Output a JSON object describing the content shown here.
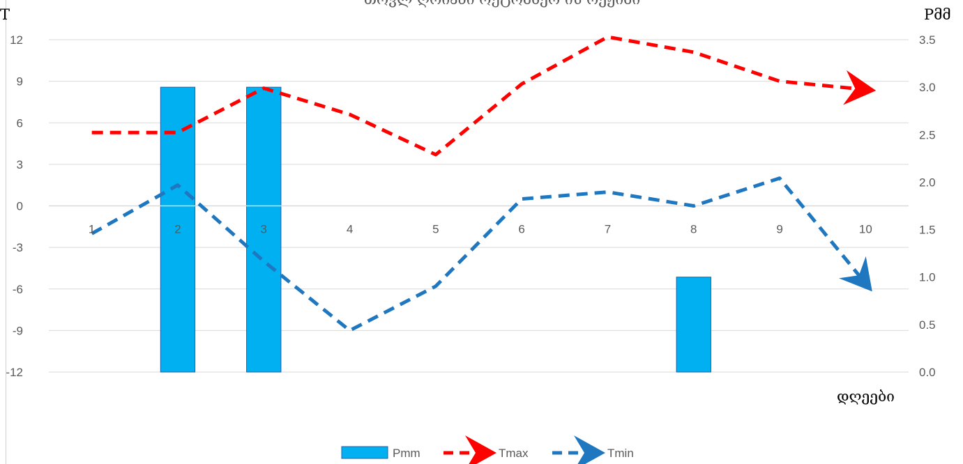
{
  "chart_data": {
    "type": "bar",
    "title": "თოვლ ღრიანი ოქტომბერ ის რეჟიმი",
    "xlabel": "დღეები",
    "ylabel_left": "T",
    "ylabel_right": "Pმმ",
    "categories": [
      "1",
      "2",
      "3",
      "4",
      "5",
      "6",
      "7",
      "8",
      "9",
      "10"
    ],
    "ylim_left": [
      -12,
      12
    ],
    "yticks_left": [
      "12",
      "9",
      "6",
      "3",
      "0",
      "-3",
      "-6",
      "-9",
      "-12"
    ],
    "ylim_right": [
      0,
      3.5
    ],
    "yticks_right": [
      "3.5",
      "3.0",
      "2.5",
      "2.0",
      "1.5",
      "1.0",
      "0.5",
      "0.0"
    ],
    "grid": true,
    "legend": "bottom",
    "series": [
      {
        "name": "Pmm",
        "type": "bar",
        "axis": "right",
        "color": "#00b0f0",
        "values": [
          0,
          3.0,
          3.0,
          0,
          0,
          0,
          0,
          1.0,
          0,
          0
        ]
      },
      {
        "name": "Tmax",
        "type": "line",
        "style": "dashed-arrow",
        "axis": "left",
        "color": "#ff0000",
        "values": [
          5.3,
          5.3,
          8.5,
          6.6,
          3.7,
          8.8,
          12.2,
          11.1,
          9.0,
          8.4
        ]
      },
      {
        "name": "Tmin",
        "type": "line",
        "style": "dashed-arrow",
        "axis": "left",
        "color": "#1f77c0",
        "values": [
          -2.0,
          1.5,
          -4.0,
          -9.0,
          -5.8,
          0.5,
          1.0,
          0.0,
          2.0,
          -5.6
        ]
      }
    ]
  }
}
